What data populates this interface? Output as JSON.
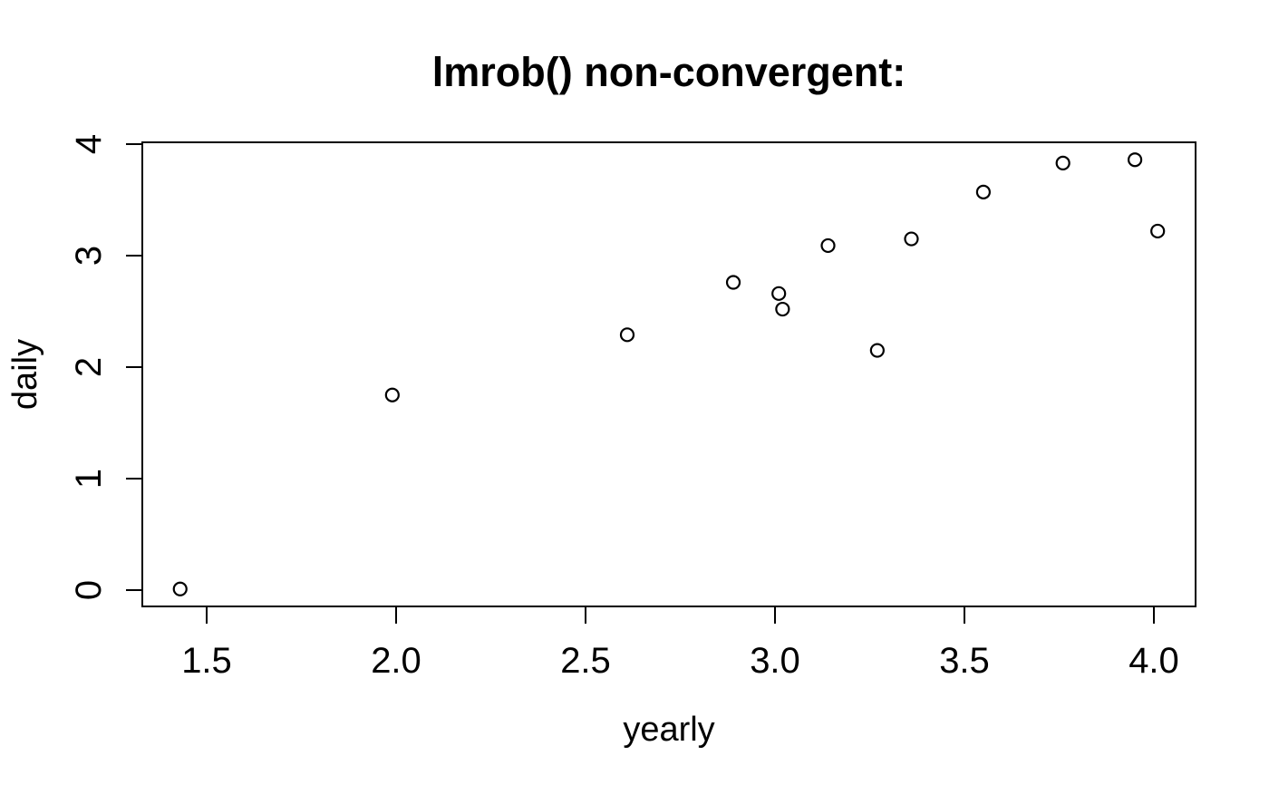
{
  "figure": {
    "background_color": "#ffffff",
    "foreground_color": "#000000"
  },
  "chart_data": {
    "type": "scatter",
    "title": "lmrob() non-convergent:",
    "xlabel": "yearly",
    "ylabel": "daily",
    "marker": "open-circle",
    "grid": false,
    "legend": false,
    "xlim": [
      1.33,
      4.11
    ],
    "ylim": [
      -0.15,
      4.02
    ],
    "x_tick_values": [
      1.5,
      2.0,
      2.5,
      3.0,
      3.5,
      4.0
    ],
    "x_tick_labels": [
      "1.5",
      "2.0",
      "2.5",
      "3.0",
      "3.5",
      "4.0"
    ],
    "y_tick_values": [
      0,
      1,
      2,
      3,
      4
    ],
    "y_tick_labels": [
      "0",
      "1",
      "2",
      "3",
      "4"
    ],
    "points": [
      {
        "x": 1.43,
        "y": 0.01
      },
      {
        "x": 1.99,
        "y": 1.75
      },
      {
        "x": 2.61,
        "y": 2.29
      },
      {
        "x": 2.89,
        "y": 2.76
      },
      {
        "x": 3.01,
        "y": 2.66
      },
      {
        "x": 3.02,
        "y": 2.52
      },
      {
        "x": 3.14,
        "y": 3.09
      },
      {
        "x": 3.27,
        "y": 2.15
      },
      {
        "x": 3.36,
        "y": 3.15
      },
      {
        "x": 3.55,
        "y": 3.57
      },
      {
        "x": 3.76,
        "y": 3.83
      },
      {
        "x": 3.95,
        "y": 3.86
      },
      {
        "x": 4.01,
        "y": 3.22
      }
    ]
  }
}
